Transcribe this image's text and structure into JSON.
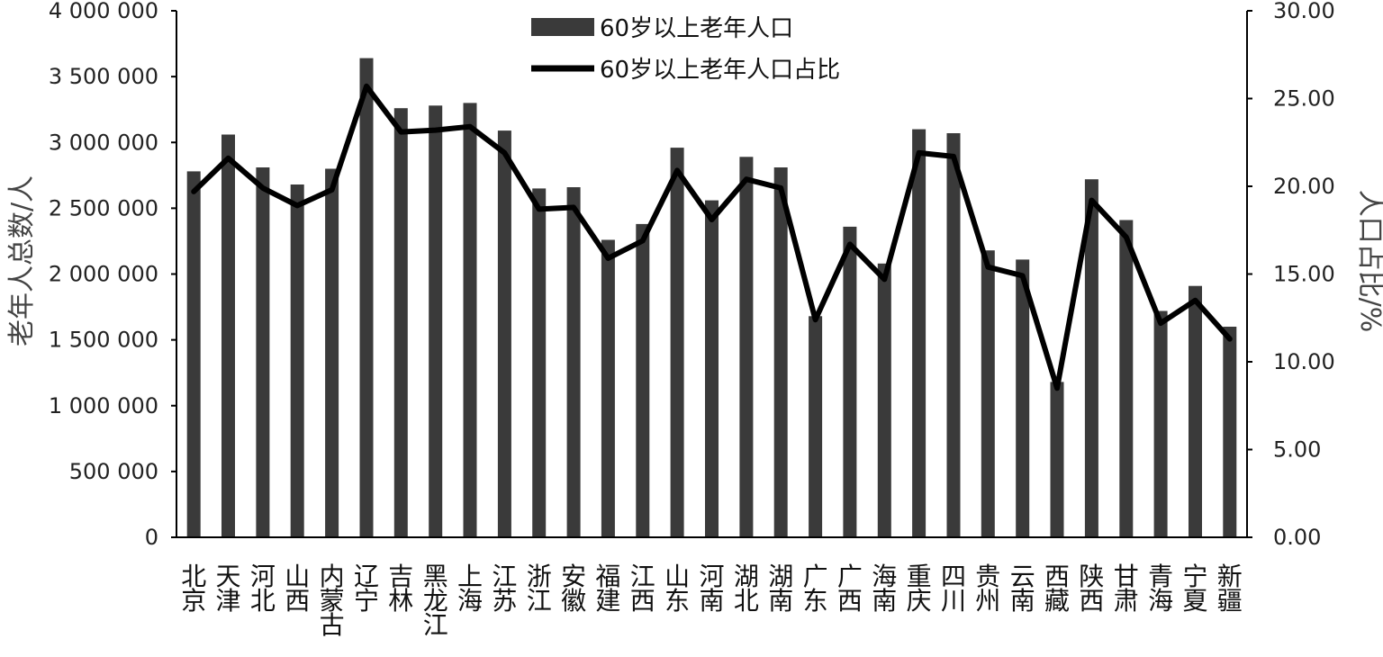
{
  "chart_data": {
    "type": "bar",
    "categories": [
      "北京",
      "天津",
      "河北",
      "山西",
      "内蒙古",
      "辽宁",
      "吉林",
      "黑龙江",
      "上海",
      "江苏",
      "浙江",
      "安徽",
      "福建",
      "江西",
      "山东",
      "河南",
      "湖北",
      "湖南",
      "广东",
      "广西",
      "海南",
      "重庆",
      "四川",
      "贵州",
      "云南",
      "西藏",
      "陕西",
      "甘肃",
      "青海",
      "宁夏",
      "新疆"
    ],
    "series": [
      {
        "name": "60岁以上老年人口",
        "type": "bar",
        "axis": "left",
        "values": [
          2780000,
          3060000,
          2810000,
          2680000,
          2800000,
          3640000,
          3260000,
          3280000,
          3300000,
          3090000,
          2650000,
          2660000,
          2260000,
          2380000,
          2960000,
          2560000,
          2890000,
          2810000,
          1680000,
          2360000,
          2080000,
          3100000,
          3070000,
          2180000,
          2110000,
          1180000,
          2720000,
          2410000,
          1720000,
          1910000,
          1600000
        ]
      },
      {
        "name": "60岁以上老年人口占比",
        "type": "line",
        "axis": "right",
        "values": [
          19.7,
          21.6,
          19.9,
          18.9,
          19.8,
          25.7,
          23.1,
          23.2,
          23.4,
          21.9,
          18.7,
          18.8,
          15.9,
          16.9,
          20.9,
          18.1,
          20.4,
          19.9,
          12.4,
          16.7,
          14.7,
          21.9,
          21.7,
          15.4,
          14.9,
          8.5,
          19.2,
          17.1,
          12.2,
          13.5,
          11.3
        ]
      }
    ],
    "left_axis": {
      "label": "老年人总数/人",
      "ylim": [
        0,
        4000000
      ],
      "ticks": [
        "0",
        "500 000",
        "1 000 000",
        "1 500 000",
        "2 000 000",
        "2 500 000",
        "3 000 000",
        "3 500 000",
        "4 000 000"
      ]
    },
    "right_axis": {
      "label": "人口占比/%",
      "ylim": [
        0,
        30
      ],
      "ticks": [
        "0.00",
        "5.00",
        "10.00",
        "15.00",
        "20.00",
        "25.00",
        "30.00"
      ]
    },
    "legend": {
      "position": "top-center"
    },
    "grid": false,
    "colors": {
      "bar": "#3a3a3a",
      "line": "#000000",
      "axis": "#000000"
    }
  }
}
